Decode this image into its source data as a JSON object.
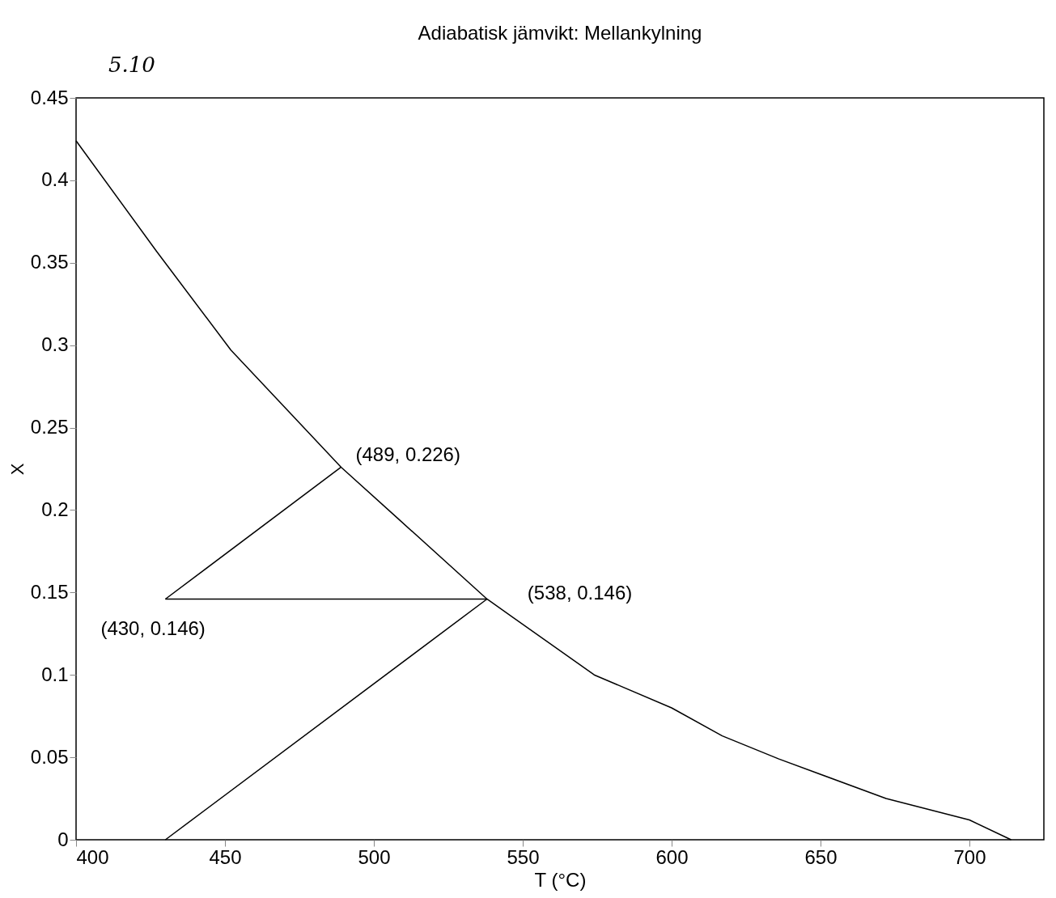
{
  "chart_data": {
    "type": "line",
    "title": "Adiabatisk jämvikt: Mellankylning",
    "xlabel": "T (°C)",
    "ylabel": "X",
    "xlim": [
      400,
      725
    ],
    "xticks": [
      400,
      450,
      500,
      550,
      600,
      650,
      700
    ],
    "ylim": [
      0,
      0.45
    ],
    "yticks": [
      0,
      0.05,
      0.1,
      0.15,
      0.2,
      0.25,
      0.3,
      0.35,
      0.4,
      0.45
    ],
    "grid": false,
    "marker": "none",
    "line_style": "solid",
    "series": [
      {
        "color": "#000000",
        "x": [
          400,
          427,
          452,
          489,
          508,
          538,
          574,
          600,
          617,
          636,
          672,
          700,
          714
        ],
        "values": [
          0.424,
          0.357,
          0.297,
          0.226,
          0.195,
          0.146,
          0.1,
          0.08,
          0.063,
          0.049,
          0.025,
          0.012,
          0
        ]
      },
      {
        "color": "#000000",
        "x": [
          430,
          538
        ],
        "values": [
          0,
          0.146
        ]
      },
      {
        "color": "#000000",
        "x": [
          538,
          430
        ],
        "values": [
          0.146,
          0.146
        ]
      },
      {
        "color": "#000000",
        "x": [
          430,
          489
        ],
        "values": [
          0.146,
          0.226
        ]
      }
    ],
    "annotations": [
      "5.10",
      {
        "text": "(489, 0.226)",
        "x": 489,
        "y": 0.226
      },
      {
        "text": "(538, 0.146)",
        "x": 538,
        "y": 0.146
      },
      {
        "text": "(430, 0.146)",
        "x": 430,
        "y": 0.146
      }
    ]
  }
}
